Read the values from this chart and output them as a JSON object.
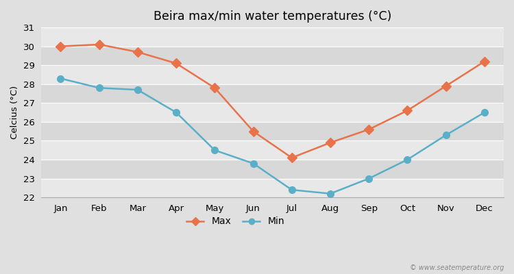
{
  "title": "Beira max/min water temperatures (°C)",
  "ylabel": "Celcius (°C)",
  "months": [
    "Jan",
    "Feb",
    "Mar",
    "Apr",
    "May",
    "Jun",
    "Jul",
    "Aug",
    "Sep",
    "Oct",
    "Nov",
    "Dec"
  ],
  "max_temps": [
    30.0,
    30.1,
    29.7,
    29.1,
    27.8,
    25.5,
    24.1,
    24.9,
    25.6,
    26.6,
    27.9,
    29.2
  ],
  "min_temps": [
    28.3,
    27.8,
    27.7,
    26.5,
    24.5,
    23.8,
    22.4,
    22.2,
    23.0,
    24.0,
    25.3,
    26.5
  ],
  "max_color": "#e8724a",
  "min_color": "#5aafc8",
  "bg_color": "#e0e0e0",
  "band_colors": [
    "#e8e8e8",
    "#d8d8d8"
  ],
  "grid_color": "#ffffff",
  "ylim": [
    22,
    31
  ],
  "yticks": [
    22,
    23,
    24,
    25,
    26,
    27,
    28,
    29,
    30,
    31
  ],
  "legend_labels": [
    "Max",
    "Min"
  ],
  "watermark": "© www.seatemperature.org",
  "max_marker": "D",
  "min_marker": "o",
  "markersize_max": 7,
  "markersize_min": 7,
  "linewidth": 1.8
}
